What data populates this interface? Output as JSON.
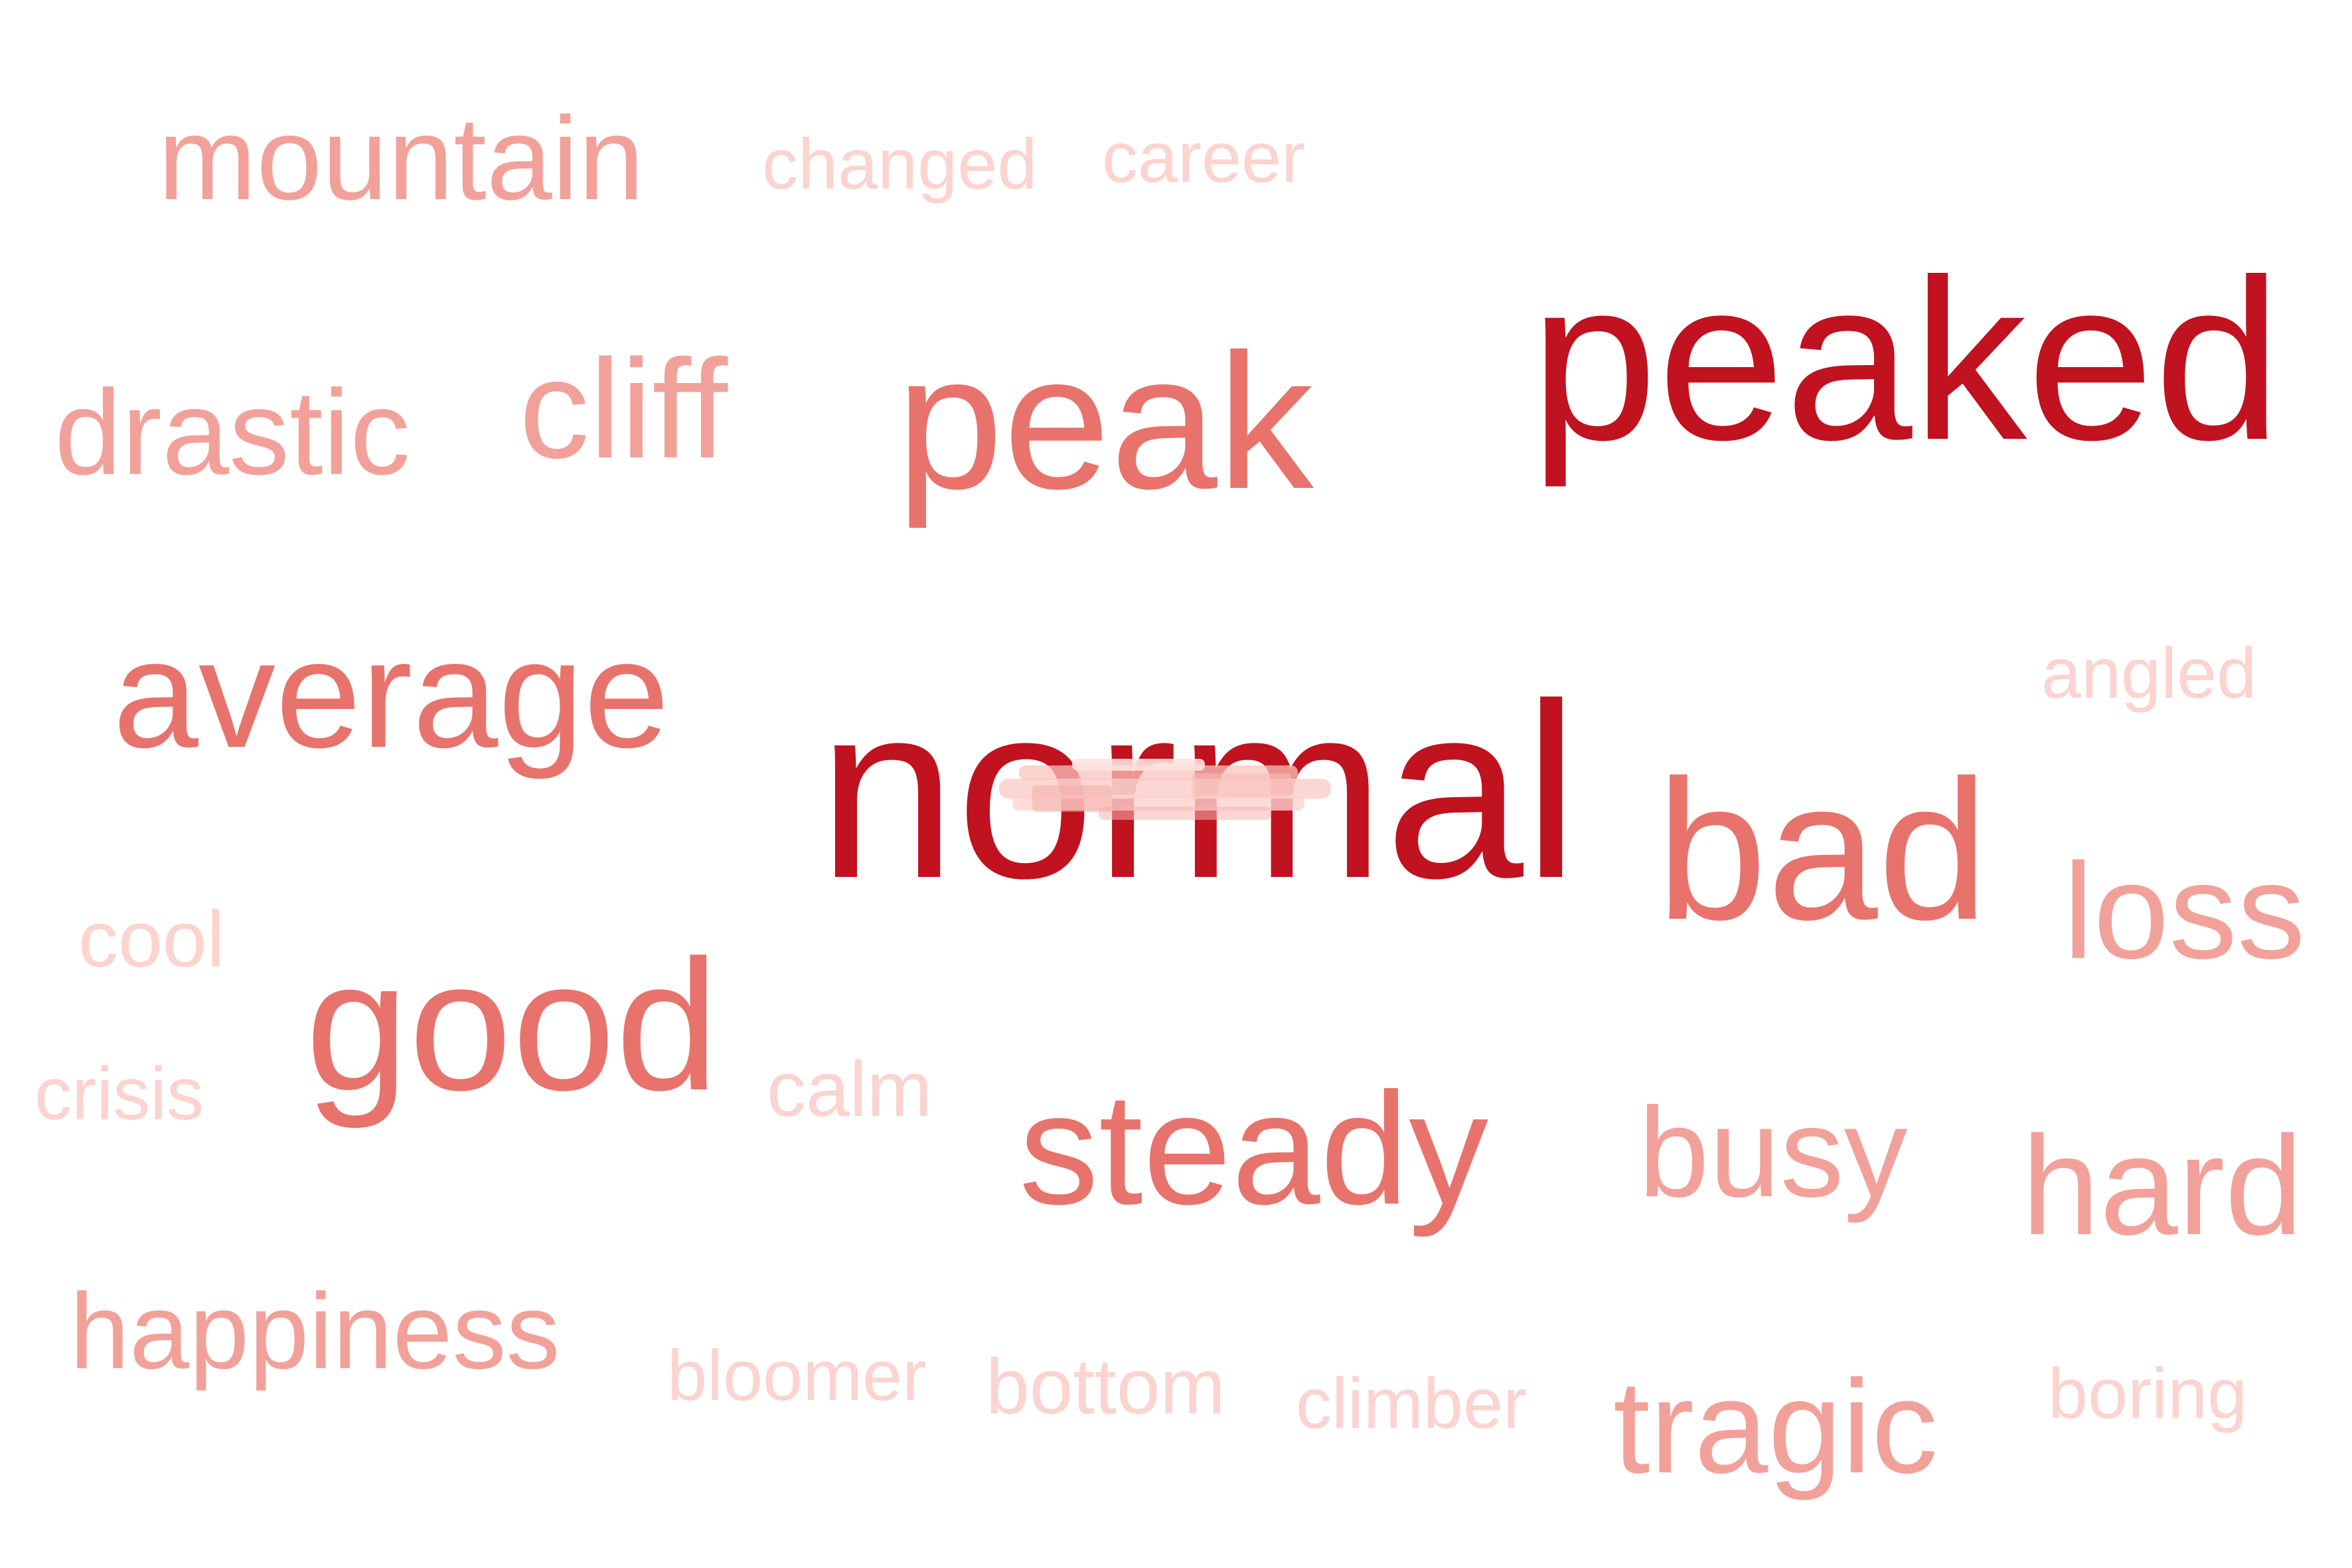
{
  "colors": {
    "tier1": "#c0121f",
    "tier2": "#e8736c",
    "tier3": "#f2a19a",
    "tier4": "#fbd3cf",
    "background": "#ffffff"
  },
  "words": [
    {
      "key": "normal",
      "text": "normal",
      "tier": "tier1"
    },
    {
      "key": "peaked",
      "text": "peaked",
      "tier": "tier1"
    },
    {
      "key": "bad",
      "text": "bad",
      "tier": "tier2"
    },
    {
      "key": "average",
      "text": "average",
      "tier": "tier2"
    },
    {
      "key": "good",
      "text": "good",
      "tier": "tier2"
    },
    {
      "key": "peak",
      "text": "peak",
      "tier": "tier2"
    },
    {
      "key": "steady",
      "text": "steady",
      "tier": "tier2"
    },
    {
      "key": "cliff",
      "text": "cliff",
      "tier": "tier3"
    },
    {
      "key": "hard",
      "text": "hard",
      "tier": "tier3"
    },
    {
      "key": "tragic",
      "text": "tragic",
      "tier": "tier3"
    },
    {
      "key": "loss",
      "text": "loss",
      "tier": "tier3"
    },
    {
      "key": "drastic",
      "text": "drastic",
      "tier": "tier3"
    },
    {
      "key": "mountain",
      "text": "mountain",
      "tier": "tier3"
    },
    {
      "key": "busy",
      "text": "busy",
      "tier": "tier3"
    },
    {
      "key": "happiness",
      "text": "happiness",
      "tier": "tier3"
    },
    {
      "key": "changed",
      "text": "changed",
      "tier": "tier4"
    },
    {
      "key": "career",
      "text": "career",
      "tier": "tier4"
    },
    {
      "key": "angled",
      "text": "angled",
      "tier": "tier4"
    },
    {
      "key": "cool",
      "text": "cool",
      "tier": "tier4"
    },
    {
      "key": "crisis",
      "text": "crisis",
      "tier": "tier4"
    },
    {
      "key": "calm",
      "text": "calm",
      "tier": "tier4"
    },
    {
      "key": "bloomer",
      "text": "bloomer",
      "tier": "tier4"
    },
    {
      "key": "bottom",
      "text": "bottom",
      "tier": "tier4"
    },
    {
      "key": "climber",
      "text": "climber",
      "tier": "tier4"
    },
    {
      "key": "boring",
      "text": "boring",
      "tier": "tier4"
    }
  ]
}
